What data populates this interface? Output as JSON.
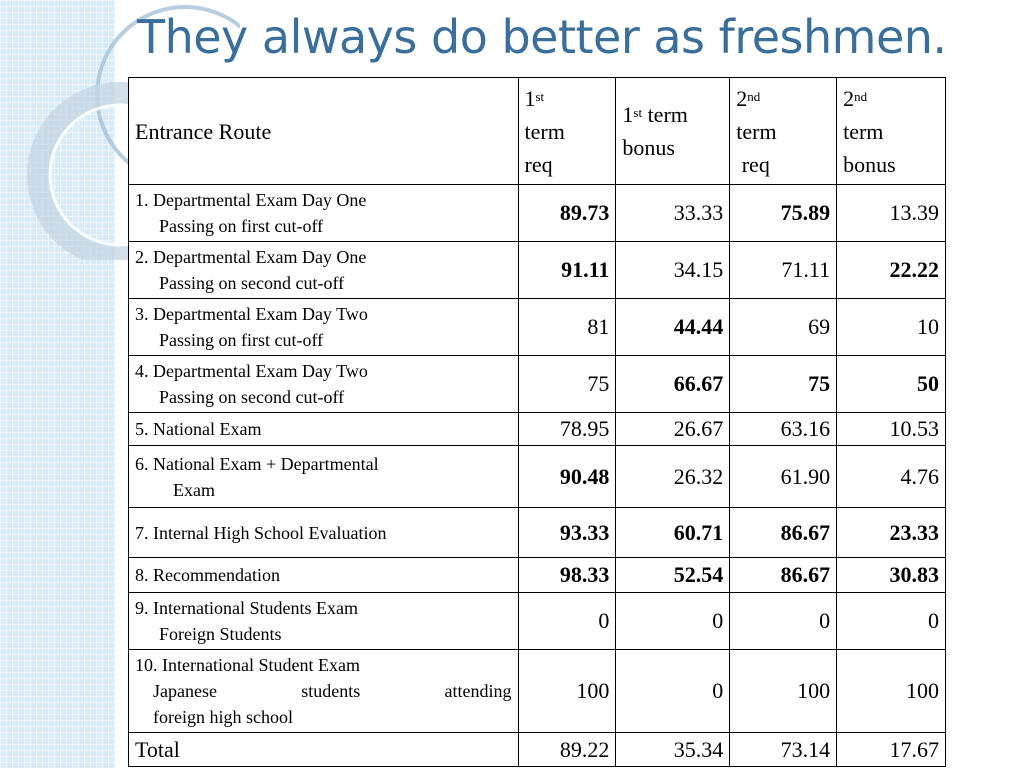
{
  "slide": {
    "title": "They always do better as freshmen."
  },
  "table": {
    "headers": {
      "route": "Entrance Route",
      "c1": {
        "num": "1",
        "sup": "st",
        "lines": [
          "term",
          "req"
        ]
      },
      "c2": {
        "num": "1",
        "sup": "st",
        "lines": [
          " term",
          "bonus"
        ]
      },
      "c3": {
        "num": "2",
        "sup": "nd",
        "lines": [
          "term",
          " req"
        ]
      },
      "c4": {
        "num": "2",
        "sup": "nd",
        "lines": [
          "term",
          "bonus"
        ]
      }
    },
    "rows": [
      {
        "line1": "1. Departmental Exam Day One",
        "line2": "Passing on first cut-off",
        "v1": "89.73",
        "v2": "33.33",
        "v3": "75.89",
        "v4": "13.39",
        "bold": [
          true,
          false,
          true,
          false
        ]
      },
      {
        "line1": "2. Departmental Exam Day One",
        "line2": "Passing on second cut-off",
        "v1": "91.11",
        "v2": "34.15",
        "v3": "71.11",
        "v4": "22.22",
        "bold": [
          true,
          false,
          false,
          true
        ]
      },
      {
        "line1": "3. Departmental Exam Day Two",
        "line2": "Passing on first cut-off",
        "v1": "81",
        "v2": "44.44",
        "v3": "69",
        "v4": "10",
        "bold": [
          false,
          true,
          false,
          false
        ]
      },
      {
        "line1": "4. Departmental Exam Day Two",
        "line2": "Passing on second cut-off",
        "v1": "75",
        "v2": "66.67",
        "v3": "75",
        "v4": "50",
        "bold": [
          false,
          true,
          true,
          true
        ]
      },
      {
        "line1": "5. National Exam",
        "line2": "",
        "v1": "78.95",
        "v2": "26.67",
        "v3": "63.16",
        "v4": "10.53",
        "bold": [
          false,
          false,
          false,
          false
        ]
      },
      {
        "line1": "6. National Exam + Departmental",
        "line2": "Exam",
        "v1": "90.48",
        "v2": "26.32",
        "v3": "61.90",
        "v4": "4.76",
        "bold": [
          true,
          false,
          false,
          false
        ]
      },
      {
        "line1": "7. Internal High School Evaluation",
        "line2": "",
        "v1": "93.33",
        "v2": "60.71",
        "v3": "86.67",
        "v4": "23.33",
        "bold": [
          true,
          true,
          true,
          true
        ]
      },
      {
        "line1": "8. Recommendation",
        "line2": "",
        "v1": "98.33",
        "v2": "52.54",
        "v3": "86.67",
        "v4": "30.83",
        "bold": [
          true,
          true,
          true,
          true
        ]
      },
      {
        "line1": "9. International Students Exam",
        "line2": "Foreign Students",
        "v1": "0",
        "v2": "0",
        "v3": "0",
        "v4": "0",
        "bold": [
          false,
          false,
          false,
          false
        ]
      },
      {
        "line1": "10. International Student Exam",
        "line2a": [
          "Japanese",
          "students",
          "attending"
        ],
        "line3": "foreign high school",
        "v1": "100",
        "v2": "0",
        "v3": "100",
        "v4": "100",
        "bold": [
          false,
          false,
          false,
          false
        ]
      }
    ],
    "total": {
      "label": "Total",
      "v1": "89.22",
      "v2": "35.34",
      "v3": "73.14",
      "v4": "17.67"
    }
  }
}
